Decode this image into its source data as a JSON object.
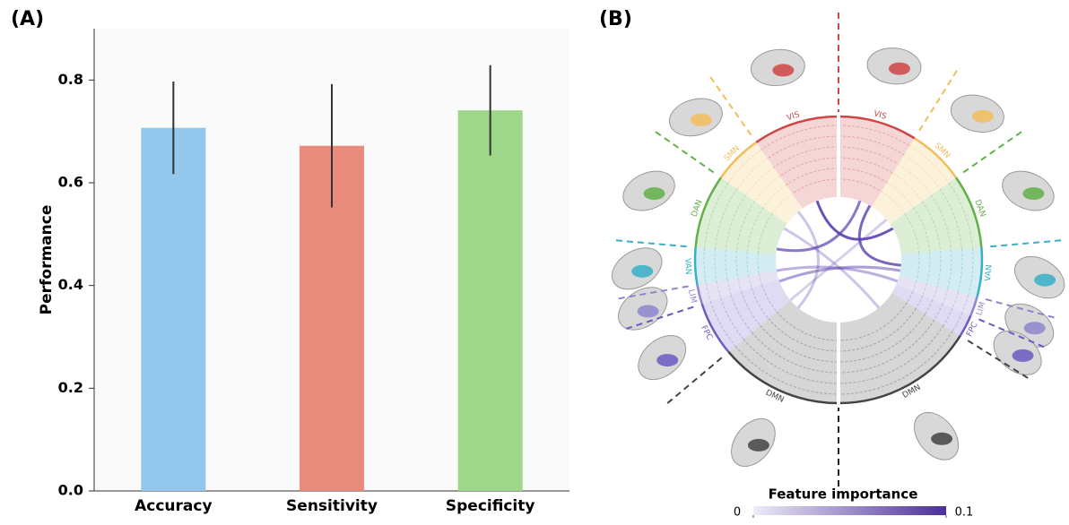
{
  "chart_data": [
    {
      "type": "bar",
      "title": "(A)",
      "y_label": "Performance",
      "categories": [
        "Accuracy",
        "Sensitivity",
        "Specificity"
      ],
      "values": [
        0.707,
        0.672,
        0.741
      ],
      "errors": [
        0.09,
        0.12,
        0.088
      ],
      "colors": [
        "#93c8ec",
        "#e98b7c",
        "#9ed68a"
      ],
      "ylim": [
        0,
        0.9
      ],
      "yticks": [
        {
          "value": 0,
          "label": "0.0"
        },
        0.2,
        0.4,
        0.6,
        0.8
      ]
    },
    {
      "type": "chord",
      "title": "(B)",
      "sectors": [
        {
          "name": "VIS",
          "color": "#d04545"
        },
        {
          "name": "SMN",
          "color": "#f2be5c"
        },
        {
          "name": "DAN",
          "color": "#62b04a"
        },
        {
          "name": "VAN",
          "color": "#36afc8"
        },
        {
          "name": "LIM",
          "color": "#8d86cc"
        },
        {
          "name": "FPC",
          "color": "#6a5bc2"
        },
        {
          "name": "DMN",
          "color": "#444444"
        }
      ],
      "colorbar": {
        "title": "Feature importance",
        "lim": [
          0,
          0.1
        ],
        "ticks": [
          0,
          0.1
        ],
        "colors": [
          "#eeecf8",
          "#4b2e9a"
        ]
      }
    }
  ]
}
